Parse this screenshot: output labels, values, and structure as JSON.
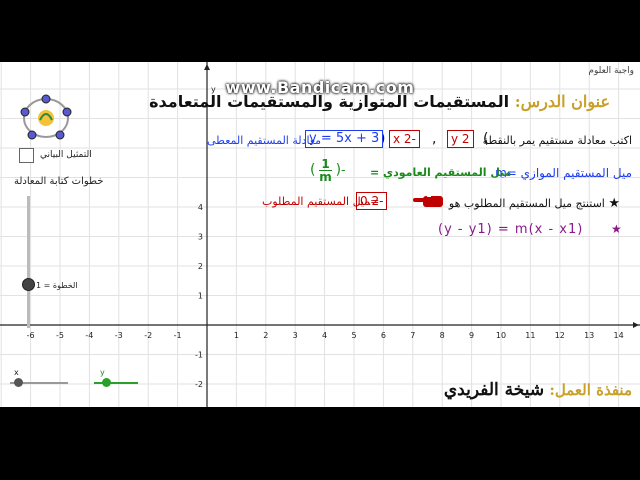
{
  "watermark": "www.Bandicam.com",
  "window_label": "واجبة العلوم",
  "lesson": {
    "label": "عنوان الدرس:",
    "title": "المستقيمات المتوازية والمستقيمات المتعامدة"
  },
  "task": {
    "prompt": "اكتب معادلة مستقيم يمر بالنقطة",
    "paren_open": "(",
    "paren_close": ")",
    "comma": ",",
    "x_value": "x 2-",
    "y_value": "y 2",
    "equation": "y = 5x + 3",
    "given_label": "معادلة المستقيم المعطى"
  },
  "parallel": {
    "label": "ميل المستقيم الموازي =m"
  },
  "perpendicular": {
    "label": "ميل المستقيم العامودي =",
    "fraction_num": "1",
    "fraction_den": "m",
    "fraction_sign": "-"
  },
  "required": {
    "value": "0.2-",
    "label": "=ميل المستقيم المطلوب"
  },
  "conclusion": {
    "star": "★",
    "text": "استنتج ميل المستقيم المطلوب هو"
  },
  "formula": {
    "star": "★",
    "text": "(y - y1) = m(x - x1)"
  },
  "left_panel": {
    "checkbox_label": "التمثيل البياني",
    "slider_title": "خطوات كتابة المعادلة",
    "step_label": "الخطوة = 1",
    "slider_x_label": "x",
    "slider_y_label": "y"
  },
  "footer": {
    "label": "منفذة العمل:",
    "name": "شيخة الفريدي"
  },
  "axes": {
    "x_ticks": [
      "-6",
      "-5",
      "-4",
      "-3",
      "-2",
      "-1",
      "1",
      "2",
      "3",
      "4",
      "5",
      "6",
      "7",
      "8",
      "9",
      "10",
      "11",
      "12",
      "13",
      "14"
    ],
    "y_ticks": [
      "4",
      "3",
      "2",
      "1",
      "-1",
      "-2"
    ],
    "y_axis_label": "y"
  },
  "colors": {
    "title_label": "#c8a02a",
    "blue": "#1d3df0",
    "green": "#1a8a1a",
    "red": "#c00000",
    "purple": "#8a1a8a",
    "hand": "#c00000"
  }
}
